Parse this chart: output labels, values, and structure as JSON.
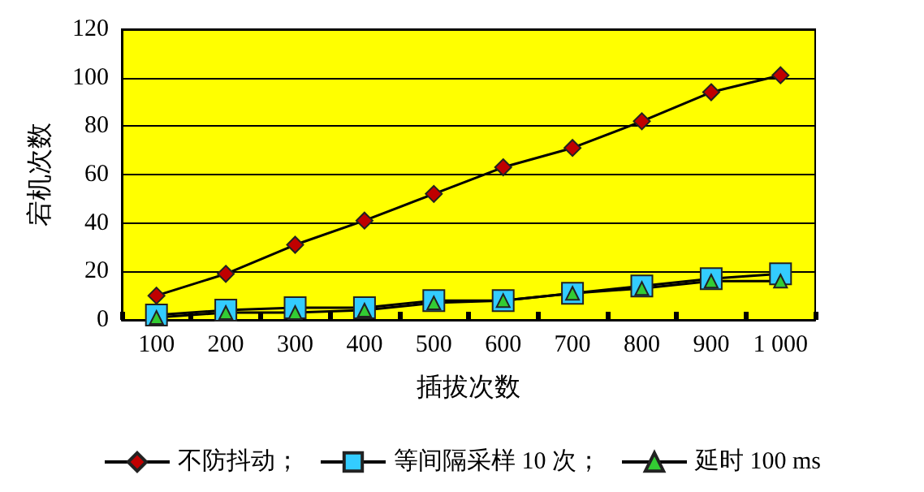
{
  "chart_data": {
    "type": "line",
    "xlabel": "插拔次数",
    "ylabel": "宕机次数",
    "categories": [
      "100",
      "200",
      "300",
      "400",
      "500",
      "600",
      "700",
      "800",
      "900",
      "1 000"
    ],
    "series": [
      {
        "name": "不防抖动；",
        "color": "#c00000",
        "marker": "diamond",
        "values": [
          10,
          19,
          31,
          41,
          52,
          63,
          71,
          82,
          94,
          101
        ]
      },
      {
        "name": "等间隔采样 10 次；",
        "color": "#33ccff",
        "marker": "square",
        "values": [
          2,
          4,
          5,
          5,
          8,
          8,
          11,
          14,
          17,
          19
        ]
      },
      {
        "name": "延时 100 ms",
        "color": "#33cc33",
        "marker": "triangle",
        "values": [
          1,
          3,
          3,
          4,
          7,
          8,
          11,
          13,
          16,
          16
        ]
      }
    ],
    "ylim": [
      0,
      120
    ],
    "yticks": [
      0,
      20,
      40,
      60,
      80,
      100,
      120
    ],
    "grid": "y",
    "legend": "bottom",
    "line_style": "solid"
  }
}
